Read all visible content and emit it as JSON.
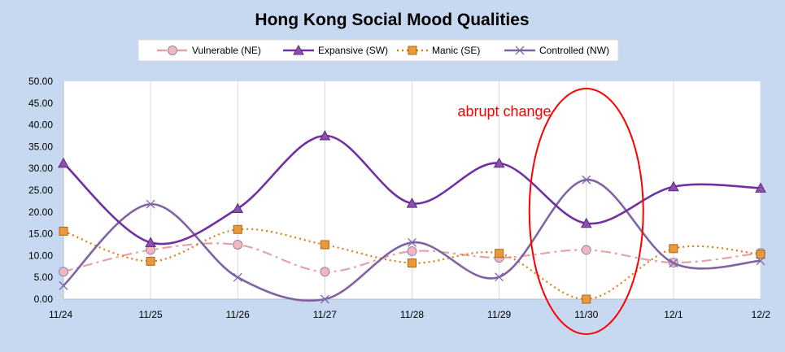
{
  "chart_data": {
    "type": "line",
    "title": "Hong Kong  Social Mood Qualities",
    "x": [
      "11/24",
      "11/25",
      "11/26",
      "11/27",
      "11/28",
      "11/29",
      "11/30",
      "12/1",
      "12/2"
    ],
    "ylim": [
      0,
      50
    ],
    "yticks": [
      "0.00",
      "5.00",
      "10.00",
      "15.00",
      "20.00",
      "25.00",
      "30.00",
      "35.00",
      "40.00",
      "45.00",
      "50.00"
    ],
    "xlabel": "",
    "ylabel": "",
    "grid": "vertical",
    "legend": "top",
    "series": [
      {
        "name": "Vulnerable (NE)",
        "color": "#e6a3a3",
        "marker": "circle",
        "line_style": "dash-dot",
        "values": [
          6.3,
          11.3,
          12.5,
          6.3,
          11.0,
          9.5,
          11.3,
          8.4,
          10.6
        ]
      },
      {
        "name": "Expansive (SW)",
        "color": "#7030a0",
        "marker": "triangle",
        "line_style": "solid",
        "values": [
          31.2,
          13.0,
          20.8,
          37.5,
          22.0,
          31.2,
          17.4,
          25.8,
          25.5
        ]
      },
      {
        "name": "Manic (SE)",
        "color": "#e07b14",
        "marker": "square",
        "line_style": "dotted",
        "values": [
          15.6,
          8.7,
          16.0,
          12.5,
          8.3,
          10.5,
          0.0,
          11.6,
          10.3
        ]
      },
      {
        "name": "Controlled (NW)",
        "color": "#8064a2",
        "marker": "x",
        "line_style": "solid",
        "values": [
          3.1,
          21.8,
          5.0,
          0.0,
          13.0,
          5.1,
          27.4,
          8.3,
          8.8
        ]
      }
    ],
    "annotations": [
      {
        "text": "abrupt change",
        "color": "#ff0000",
        "target": "11/30"
      }
    ]
  }
}
